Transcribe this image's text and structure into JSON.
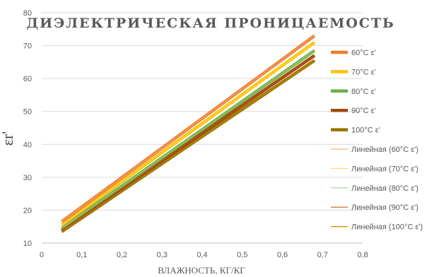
{
  "chart_data": {
    "type": "line",
    "title": "ДИЭЛЕКТРИЧЕСКАЯ ПРОНИЦАЕМОСТЬ",
    "xlabel": "ВЛАЖНОСТЬ, КГ/КГ",
    "ylabel": "εr'",
    "xlim": [
      0,
      0.8
    ],
    "ylim": [
      10,
      80
    ],
    "xticks": [
      "0",
      "0,1",
      "0,2",
      "0,3",
      "0,4",
      "0,5",
      "0,6",
      "0,7",
      "0,8"
    ],
    "yticks": [
      "10",
      "20",
      "30",
      "40",
      "50",
      "60",
      "70",
      "80"
    ],
    "grid": "horizontal",
    "legend_position": "right",
    "series": [
      {
        "name": "60°C ε'",
        "color": "#ED7D31",
        "x": [
          0.05,
          0.68
        ],
        "y": [
          16.5,
          73.0
        ]
      },
      {
        "name": "70°C ε'",
        "color": "#FFC000",
        "x": [
          0.05,
          0.68
        ],
        "y": [
          15.5,
          71.0
        ]
      },
      {
        "name": "80°C ε'",
        "color": "#70AD47",
        "x": [
          0.05,
          0.68
        ],
        "y": [
          14.5,
          68.5
        ]
      },
      {
        "name": "90°C ε'",
        "color": "#9E480E",
        "x": [
          0.05,
          0.68
        ],
        "y": [
          14.0,
          67.0
        ]
      },
      {
        "name": "100°C ε'",
        "color": "#997300",
        "x": [
          0.05,
          0.68
        ],
        "y": [
          13.5,
          65.5
        ]
      }
    ],
    "trendlines": [
      {
        "name": "Линейная (60°C ε')",
        "color": "#F4B183"
      },
      {
        "name": "Линейная (70°C ε')",
        "color": "#FFD966"
      },
      {
        "name": "Линейная (80°C ε')",
        "color": "#A9D18E"
      },
      {
        "name": "Линейная (90°C ε')",
        "color": "#C55A11"
      },
      {
        "name": "Линейная (100°C ε')",
        "color": "#BF9000"
      }
    ]
  }
}
